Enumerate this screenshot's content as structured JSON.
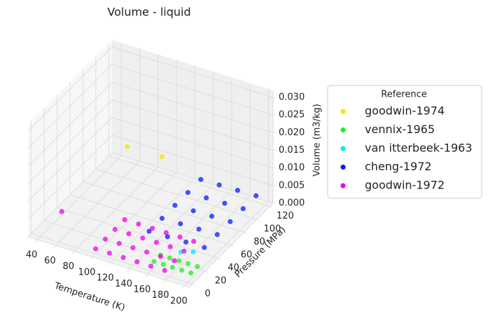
{
  "chart_data": {
    "type": "scatter3d",
    "title": "Volume - liquid",
    "x_label": "Temperature (K)",
    "y_label": "Pressure (MPa)",
    "z_label": "Volume (m3/kg)",
    "legend_title": "Reference",
    "legend_position": "right",
    "xlim": [
      30,
      205
    ],
    "xticks": [
      40,
      60,
      80,
      100,
      120,
      140,
      160,
      180,
      200
    ],
    "ylim": [
      -5,
      125
    ],
    "yticks": [
      0,
      20,
      40,
      60,
      80,
      100,
      120
    ],
    "zlim": [
      0,
      0.032
    ],
    "zticks": [
      {
        "value": 0,
        "label": "0.000"
      },
      0.005,
      {
        "value": 0.01,
        "label": "0.010"
      },
      0.015,
      {
        "value": 0.02,
        "label": "0.020"
      },
      0.025,
      {
        "value": 0.03,
        "label": "0.030"
      }
    ],
    "grid": true,
    "series": [
      {
        "name": "goodwin-1974",
        "color": "#f2e600",
        "x": [
          90,
          130
        ],
        "y": [
          63,
          60
        ],
        "z": [
          0.018,
          0.019
        ]
      },
      {
        "name": "vennix-1965",
        "color": "#22ee22",
        "x": [
          160,
          170,
          180,
          190,
          200,
          160,
          170,
          180,
          190,
          200
        ],
        "y": [
          5,
          5,
          5,
          5,
          5,
          15,
          15,
          15,
          15,
          15
        ],
        "z": [
          0.0018,
          0.0018,
          0.0018,
          0.0018,
          0.0018,
          0.0018,
          0.0018,
          0.0018,
          0.0018,
          0.0018
        ]
      },
      {
        "name": "van itterbeek-1963",
        "color": "#00eeee",
        "x": [
          175,
          185
        ],
        "y": [
          25,
          30
        ],
        "z": [
          0.002,
          0.002
        ]
      },
      {
        "name": "cheng-1972",
        "color": "#0a1aff",
        "x": [
          130,
          150,
          170,
          190,
          130,
          150,
          170,
          190,
          130,
          150,
          170,
          190,
          130,
          150,
          170,
          190,
          130,
          150,
          170,
          190
        ],
        "y": [
          40,
          40,
          40,
          40,
          60,
          60,
          60,
          60,
          80,
          80,
          80,
          80,
          100,
          100,
          100,
          100,
          120,
          120,
          120,
          120
        ],
        "z": [
          0.0015,
          0.0016,
          0.0017,
          0.0018,
          0.0015,
          0.0016,
          0.0017,
          0.0018,
          0.0015,
          0.0016,
          0.0017,
          0.0018,
          0.0015,
          0.0016,
          0.0017,
          0.0018,
          0.0015,
          0.0016,
          0.0017,
          0.0018
        ]
      },
      {
        "name": "goodwin-1972",
        "color": "#ee00ee",
        "x": [
          40,
          100,
          115,
          130,
          145,
          160,
          175,
          100,
          115,
          130,
          145,
          160,
          175,
          100,
          115,
          130,
          145,
          160,
          175,
          100,
          115,
          130,
          145,
          160,
          175
        ],
        "y": [
          33,
          0,
          0,
          0,
          0,
          0,
          0,
          15,
          15,
          15,
          15,
          15,
          15,
          30,
          30,
          30,
          30,
          30,
          30,
          45,
          45,
          45,
          45,
          45,
          45
        ],
        "z": [
          0.001,
          0.0014,
          0.0014,
          0.0014,
          0.0014,
          0.0014,
          0.0014,
          0.0014,
          0.0014,
          0.0014,
          0.0014,
          0.0014,
          0.0014,
          0.0014,
          0.0014,
          0.0014,
          0.0014,
          0.0014,
          0.0014,
          0.0014,
          0.0014,
          0.0014,
          0.0014,
          0.0014,
          0.0014
        ]
      }
    ]
  }
}
